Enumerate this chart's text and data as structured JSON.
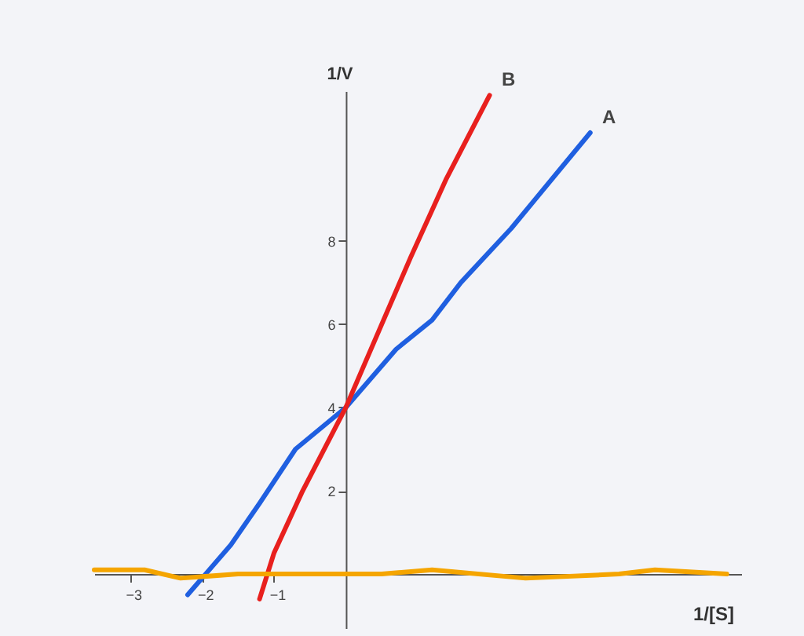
{
  "chart_data": {
    "type": "line",
    "xlabel": "1/[S]",
    "ylabel": "1/V",
    "xlim": [
      -3.5,
      5.5
    ],
    "ylim": [
      -1.3,
      11.6
    ],
    "xticks": [
      -3,
      -2,
      -1
    ],
    "yticks": [
      2,
      4,
      6,
      8
    ],
    "grid": false,
    "series": [
      {
        "name": "A",
        "color": "#1f5fe0",
        "x": [
          -2.2,
          -1.6,
          -1.2,
          -0.7,
          0,
          0.7,
          1.2,
          1.6,
          2.3,
          3.4
        ],
        "values": [
          -0.5,
          0.7,
          1.7,
          3.0,
          4,
          5.4,
          6.1,
          7.0,
          8.3,
          10.6
        ]
      },
      {
        "name": "B",
        "color": "#e8201e",
        "x": [
          -1.2,
          -1.0,
          -0.6,
          0,
          0.5,
          0.9,
          1.4,
          2.0
        ],
        "values": [
          -0.6,
          0.5,
          2.0,
          4,
          6.0,
          7.6,
          9.5,
          11.5
        ]
      },
      {
        "color": "#f5a500",
        "x": [
          -3.5,
          -2.8,
          -2.3,
          -1.5,
          0.5,
          1.2,
          2.5,
          3.8,
          4.3,
          5.3
        ],
        "values": [
          0.1,
          0.1,
          -0.1,
          0,
          0,
          0.1,
          -0.1,
          0,
          0.1,
          0
        ]
      }
    ]
  }
}
